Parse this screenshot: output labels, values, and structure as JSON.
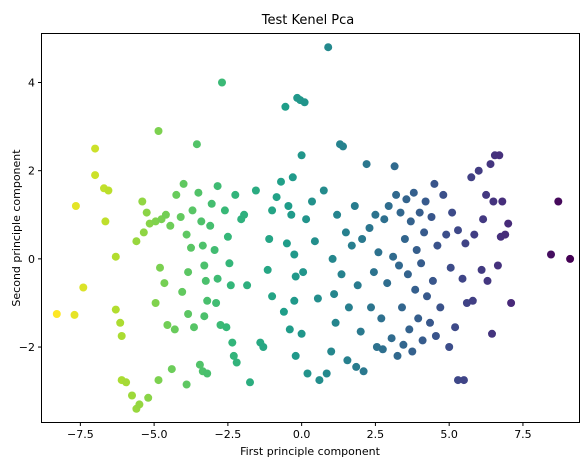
{
  "chart_data": {
    "type": "scatter",
    "title": "Test Kenel Pca",
    "xlabel": "First principle component",
    "ylabel": "Second principle component",
    "xlim": [
      -8.8,
      9.4
    ],
    "ylim": [
      -3.7,
      5.1
    ],
    "xticks": [
      -7.5,
      -5.0,
      -2.5,
      0.0,
      2.5,
      5.0,
      7.5
    ],
    "xtick_labels": [
      "−7.5",
      "−5.0",
      "−2.5",
      "0.0",
      "2.5",
      "5.0",
      "7.5"
    ],
    "yticks": [
      -2,
      0,
      2,
      4
    ],
    "ytick_labels": [
      "−2",
      "0",
      "2",
      "4"
    ],
    "grid": false,
    "colormap": "viridis (reversed along x: yellow at low x, purple at high x)",
    "color_low": "#fde725",
    "color_high": "#440154",
    "points": [
      [
        -8.3,
        -1.25
      ],
      [
        -7.7,
        -1.27
      ],
      [
        -7.4,
        -0.65
      ],
      [
        -7.65,
        1.2
      ],
      [
        -7.0,
        2.5
      ],
      [
        -7.0,
        1.9
      ],
      [
        -6.7,
        1.6
      ],
      [
        -6.55,
        1.55
      ],
      [
        -6.65,
        0.85
      ],
      [
        -6.3,
        0.05
      ],
      [
        -6.3,
        -1.15
      ],
      [
        -6.15,
        -1.45
      ],
      [
        -6.1,
        -1.75
      ],
      [
        -6.1,
        -2.75
      ],
      [
        -5.95,
        -2.8
      ],
      [
        -5.75,
        -3.1
      ],
      [
        -5.6,
        -3.4
      ],
      [
        -5.5,
        -3.3
      ],
      [
        -5.2,
        -3.15
      ],
      [
        -5.6,
        0.4
      ],
      [
        -5.35,
        0.6
      ],
      [
        -5.15,
        0.8
      ],
      [
        -4.95,
        0.85
      ],
      [
        -4.75,
        0.9
      ],
      [
        -4.6,
        1.0
      ],
      [
        -4.45,
        0.75
      ],
      [
        -5.4,
        1.3
      ],
      [
        -5.25,
        1.05
      ],
      [
        -4.85,
        2.9
      ],
      [
        -4.95,
        -1.0
      ],
      [
        -4.8,
        -0.2
      ],
      [
        -4.65,
        -0.55
      ],
      [
        -4.55,
        -1.5
      ],
      [
        -4.3,
        -1.6
      ],
      [
        -4.85,
        -2.75
      ],
      [
        -4.4,
        -2.5
      ],
      [
        -4.25,
        1.45
      ],
      [
        -4.0,
        1.7
      ],
      [
        -4.1,
        0.95
      ],
      [
        -3.9,
        0.55
      ],
      [
        -3.75,
        0.25
      ],
      [
        -3.85,
        -0.3
      ],
      [
        -4.05,
        -0.75
      ],
      [
        -3.85,
        -1.25
      ],
      [
        -3.7,
        1.1
      ],
      [
        -3.9,
        -2.85
      ],
      [
        -3.65,
        -1.55
      ],
      [
        -3.55,
        2.6
      ],
      [
        -3.5,
        1.5
      ],
      [
        -3.4,
        0.85
      ],
      [
        -3.35,
        0.3
      ],
      [
        -3.3,
        -0.15
      ],
      [
        -3.25,
        -0.5
      ],
      [
        -3.2,
        -0.95
      ],
      [
        -3.3,
        -1.3
      ],
      [
        -3.45,
        -2.4
      ],
      [
        -3.35,
        -2.55
      ],
      [
        -3.2,
        -2.6
      ],
      [
        -3.1,
        0.75
      ],
      [
        -3.05,
        1.25
      ],
      [
        -2.95,
        0.2
      ],
      [
        -2.85,
        -0.45
      ],
      [
        -2.9,
        -1.0
      ],
      [
        -2.75,
        -1.5
      ],
      [
        -2.85,
        1.65
      ],
      [
        -2.7,
        4.0
      ],
      [
        -2.6,
        1.1
      ],
      [
        -2.5,
        0.5
      ],
      [
        -2.45,
        -0.1
      ],
      [
        -2.4,
        -0.6
      ],
      [
        -2.55,
        -1.55
      ],
      [
        -2.35,
        -1.9
      ],
      [
        -2.3,
        -2.2
      ],
      [
        -2.2,
        -2.35
      ],
      [
        -2.25,
        1.45
      ],
      [
        -2.05,
        0.9
      ],
      [
        -1.95,
        1.0
      ],
      [
        -1.85,
        -0.6
      ],
      [
        -1.75,
        -2.8
      ],
      [
        -1.55,
        1.55
      ],
      [
        -1.4,
        -1.9
      ],
      [
        -1.3,
        -2.0
      ],
      [
        -1.15,
        -0.25
      ],
      [
        -1.1,
        0.45
      ],
      [
        -1.0,
        -0.85
      ],
      [
        -1.0,
        1.1
      ],
      [
        -0.85,
        1.4
      ],
      [
        -0.7,
        1.75
      ],
      [
        -0.6,
        -1.2
      ],
      [
        -0.5,
        0.35
      ],
      [
        -0.45,
        1.2
      ],
      [
        -0.55,
        3.45
      ],
      [
        -0.3,
        1.85
      ],
      [
        -0.35,
        1.0
      ],
      [
        -0.25,
        0.1
      ],
      [
        -0.2,
        -0.4
      ],
      [
        -0.25,
        -0.95
      ],
      [
        -0.4,
        -1.6
      ],
      [
        -0.2,
        -2.2
      ],
      [
        -0.15,
        3.65
      ],
      [
        -0.05,
        3.6
      ],
      [
        0.1,
        3.55
      ],
      [
        0.0,
        2.35
      ],
      [
        0.15,
        0.9
      ],
      [
        0.05,
        -0.3
      ],
      [
        0.0,
        -1.7
      ],
      [
        0.2,
        -2.6
      ],
      [
        0.35,
        1.3
      ],
      [
        0.45,
        0.4
      ],
      [
        0.55,
        -0.9
      ],
      [
        0.6,
        -2.75
      ],
      [
        0.75,
        1.55
      ],
      [
        0.9,
        4.8
      ],
      [
        0.85,
        -2.6
      ],
      [
        1.0,
        -2.1
      ],
      [
        1.05,
        0.0
      ],
      [
        1.1,
        -0.8
      ],
      [
        1.15,
        -1.45
      ],
      [
        1.2,
        1.0
      ],
      [
        1.3,
        2.6
      ],
      [
        1.4,
        2.55
      ],
      [
        1.35,
        -0.35
      ],
      [
        1.5,
        0.6
      ],
      [
        1.55,
        -2.3
      ],
      [
        1.6,
        -1.1
      ],
      [
        1.7,
        0.3
      ],
      [
        1.8,
        1.2
      ],
      [
        1.9,
        -0.6
      ],
      [
        1.85,
        -2.45
      ],
      [
        2.0,
        -1.65
      ],
      [
        2.05,
        0.45
      ],
      [
        2.1,
        -2.55
      ],
      [
        2.2,
        2.15
      ],
      [
        2.3,
        0.7
      ],
      [
        2.35,
        -1.1
      ],
      [
        2.45,
        -0.3
      ],
      [
        2.5,
        1.0
      ],
      [
        2.55,
        -2.0
      ],
      [
        2.6,
        0.15
      ],
      [
        2.7,
        -1.35
      ],
      [
        2.75,
        -2.05
      ],
      [
        2.8,
        0.9
      ],
      [
        2.9,
        -0.55
      ],
      [
        2.95,
        1.2
      ],
      [
        3.05,
        -1.8
      ],
      [
        3.1,
        0.05
      ],
      [
        3.15,
        2.1
      ],
      [
        3.2,
        1.45
      ],
      [
        3.25,
        -2.2
      ],
      [
        3.3,
        -0.15
      ],
      [
        3.35,
        1.05
      ],
      [
        3.4,
        -1.1
      ],
      [
        3.45,
        -1.95
      ],
      [
        3.5,
        0.45
      ],
      [
        3.55,
        1.35
      ],
      [
        3.6,
        -0.35
      ],
      [
        3.65,
        -1.6
      ],
      [
        3.7,
        0.85
      ],
      [
        3.75,
        -2.1
      ],
      [
        3.8,
        1.5
      ],
      [
        3.85,
        -0.7
      ],
      [
        3.9,
        0.2
      ],
      [
        3.95,
        -1.35
      ],
      [
        4.0,
        1.05
      ],
      [
        4.05,
        -0.1
      ],
      [
        4.1,
        -1.85
      ],
      [
        4.15,
        0.6
      ],
      [
        4.2,
        1.3
      ],
      [
        4.25,
        -0.85
      ],
      [
        4.35,
        -1.45
      ],
      [
        4.4,
        0.95
      ],
      [
        4.45,
        -0.5
      ],
      [
        4.5,
        1.7
      ],
      [
        4.55,
        -1.75
      ],
      [
        4.6,
        0.3
      ],
      [
        4.7,
        -1.1
      ],
      [
        4.8,
        1.45
      ],
      [
        4.9,
        0.55
      ],
      [
        5.0,
        -2.0
      ],
      [
        5.05,
        -0.2
      ],
      [
        5.1,
        1.05
      ],
      [
        5.2,
        -1.55
      ],
      [
        5.3,
        -2.75
      ],
      [
        5.3,
        0.65
      ],
      [
        5.45,
        -0.45
      ],
      [
        5.5,
        -2.75
      ],
      [
        5.55,
        0.35
      ],
      [
        5.6,
        -1.0
      ],
      [
        5.75,
        1.85
      ],
      [
        5.8,
        -0.95
      ],
      [
        5.85,
        0.55
      ],
      [
        6.0,
        2.0
      ],
      [
        6.1,
        -0.25
      ],
      [
        6.15,
        0.9
      ],
      [
        6.25,
        1.45
      ],
      [
        6.3,
        -0.5
      ],
      [
        6.4,
        2.15
      ],
      [
        6.45,
        -1.7
      ],
      [
        6.5,
        1.3
      ],
      [
        6.55,
        2.35
      ],
      [
        6.65,
        -0.15
      ],
      [
        6.7,
        2.35
      ],
      [
        6.75,
        0.5
      ],
      [
        6.8,
        1.3
      ],
      [
        6.9,
        0.55
      ],
      [
        7.0,
        0.8
      ],
      [
        7.1,
        -1.0
      ],
      [
        8.45,
        0.1
      ],
      [
        8.7,
        1.3
      ],
      [
        9.1,
        0.0
      ]
    ]
  }
}
